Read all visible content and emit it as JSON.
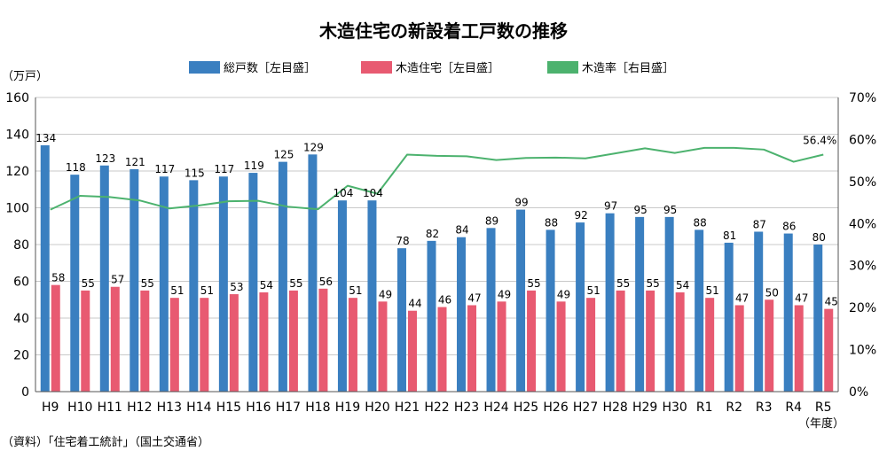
{
  "chart_data": {
    "type": "bar",
    "title": "木造住宅の新設着工戸数の推移",
    "left_axis_unit": "（万戸）",
    "x_unit": "（年度）",
    "source": "（資料）「住宅着工統計」（国土交通省）",
    "categories": [
      "H9",
      "H10",
      "H11",
      "H12",
      "H13",
      "H14",
      "H15",
      "H16",
      "H17",
      "H18",
      "H19",
      "H20",
      "H21",
      "H22",
      "H23",
      "H24",
      "H25",
      "H26",
      "H27",
      "H28",
      "H29",
      "H30",
      "R1",
      "R2",
      "R3",
      "R4",
      "R5"
    ],
    "series": [
      {
        "name": "総戸数［左目盛］",
        "type": "bar",
        "axis": "left",
        "color": "#3a7fc0",
        "values": [
          134,
          118,
          123,
          121,
          117,
          115,
          117,
          119,
          125,
          129,
          104,
          104,
          78,
          82,
          84,
          89,
          99,
          88,
          92,
          97,
          95,
          95,
          88,
          81,
          87,
          86,
          80
        ]
      },
      {
        "name": "木造住宅［左目盛］",
        "type": "bar",
        "axis": "left",
        "color": "#e85a71",
        "values": [
          58,
          55,
          57,
          55,
          51,
          51,
          53,
          54,
          55,
          56,
          51,
          49,
          44,
          46,
          47,
          49,
          55,
          49,
          51,
          55,
          55,
          54,
          51,
          47,
          50,
          47,
          45
        ]
      },
      {
        "name": "木造率［右目盛］",
        "type": "line",
        "axis": "right",
        "color": "#4cb26e",
        "values": [
          43.3,
          46.6,
          46.3,
          45.5,
          43.6,
          44.3,
          45.3,
          45.4,
          44.0,
          43.4,
          49.0,
          47.1,
          56.4,
          56.1,
          56.0,
          55.1,
          55.6,
          55.7,
          55.5,
          56.7,
          57.9,
          56.8,
          58.0,
          58.0,
          57.6,
          54.7,
          56.4
        ]
      }
    ],
    "last_point_label": "56.4%",
    "y_left": {
      "min": 0,
      "max": 160,
      "ticks": [
        0,
        20,
        40,
        60,
        80,
        100,
        120,
        140,
        160
      ]
    },
    "y_right": {
      "min": 0,
      "max": 70,
      "ticks": [
        "0%",
        "10%",
        "20%",
        "30%",
        "40%",
        "50%",
        "60%",
        "70%"
      ]
    },
    "grid": true,
    "legend_position": "top"
  }
}
